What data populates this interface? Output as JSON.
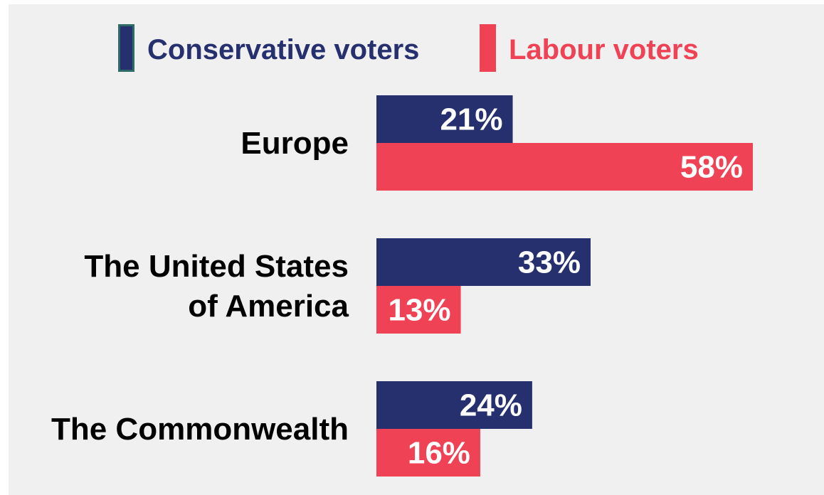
{
  "colors": {
    "conservative": "#26306f",
    "labour": "#f04255",
    "background": "#f1f0f0",
    "label_text": "#000000",
    "value_text": "#ffffff"
  },
  "legend": {
    "conservative": "Conservative voters",
    "labour": "Labour voters"
  },
  "chart_data": {
    "type": "bar",
    "orientation": "horizontal",
    "categories": [
      "Europe",
      "The United States of America",
      "The Commonwealth"
    ],
    "category_lines": [
      [
        "Europe"
      ],
      [
        "The United States",
        "of America"
      ],
      [
        "The Commonwealth"
      ]
    ],
    "series": [
      {
        "name": "Conservative voters",
        "values": [
          21,
          33,
          24
        ],
        "labels": [
          "21%",
          "33%",
          "24%"
        ]
      },
      {
        "name": "Labour voters",
        "values": [
          58,
          13,
          16
        ],
        "labels": [
          "58%",
          "13%",
          "16%"
        ]
      }
    ],
    "unit": "%",
    "xlim": [
      0,
      58
    ],
    "grid": false,
    "legend_position": "top"
  }
}
